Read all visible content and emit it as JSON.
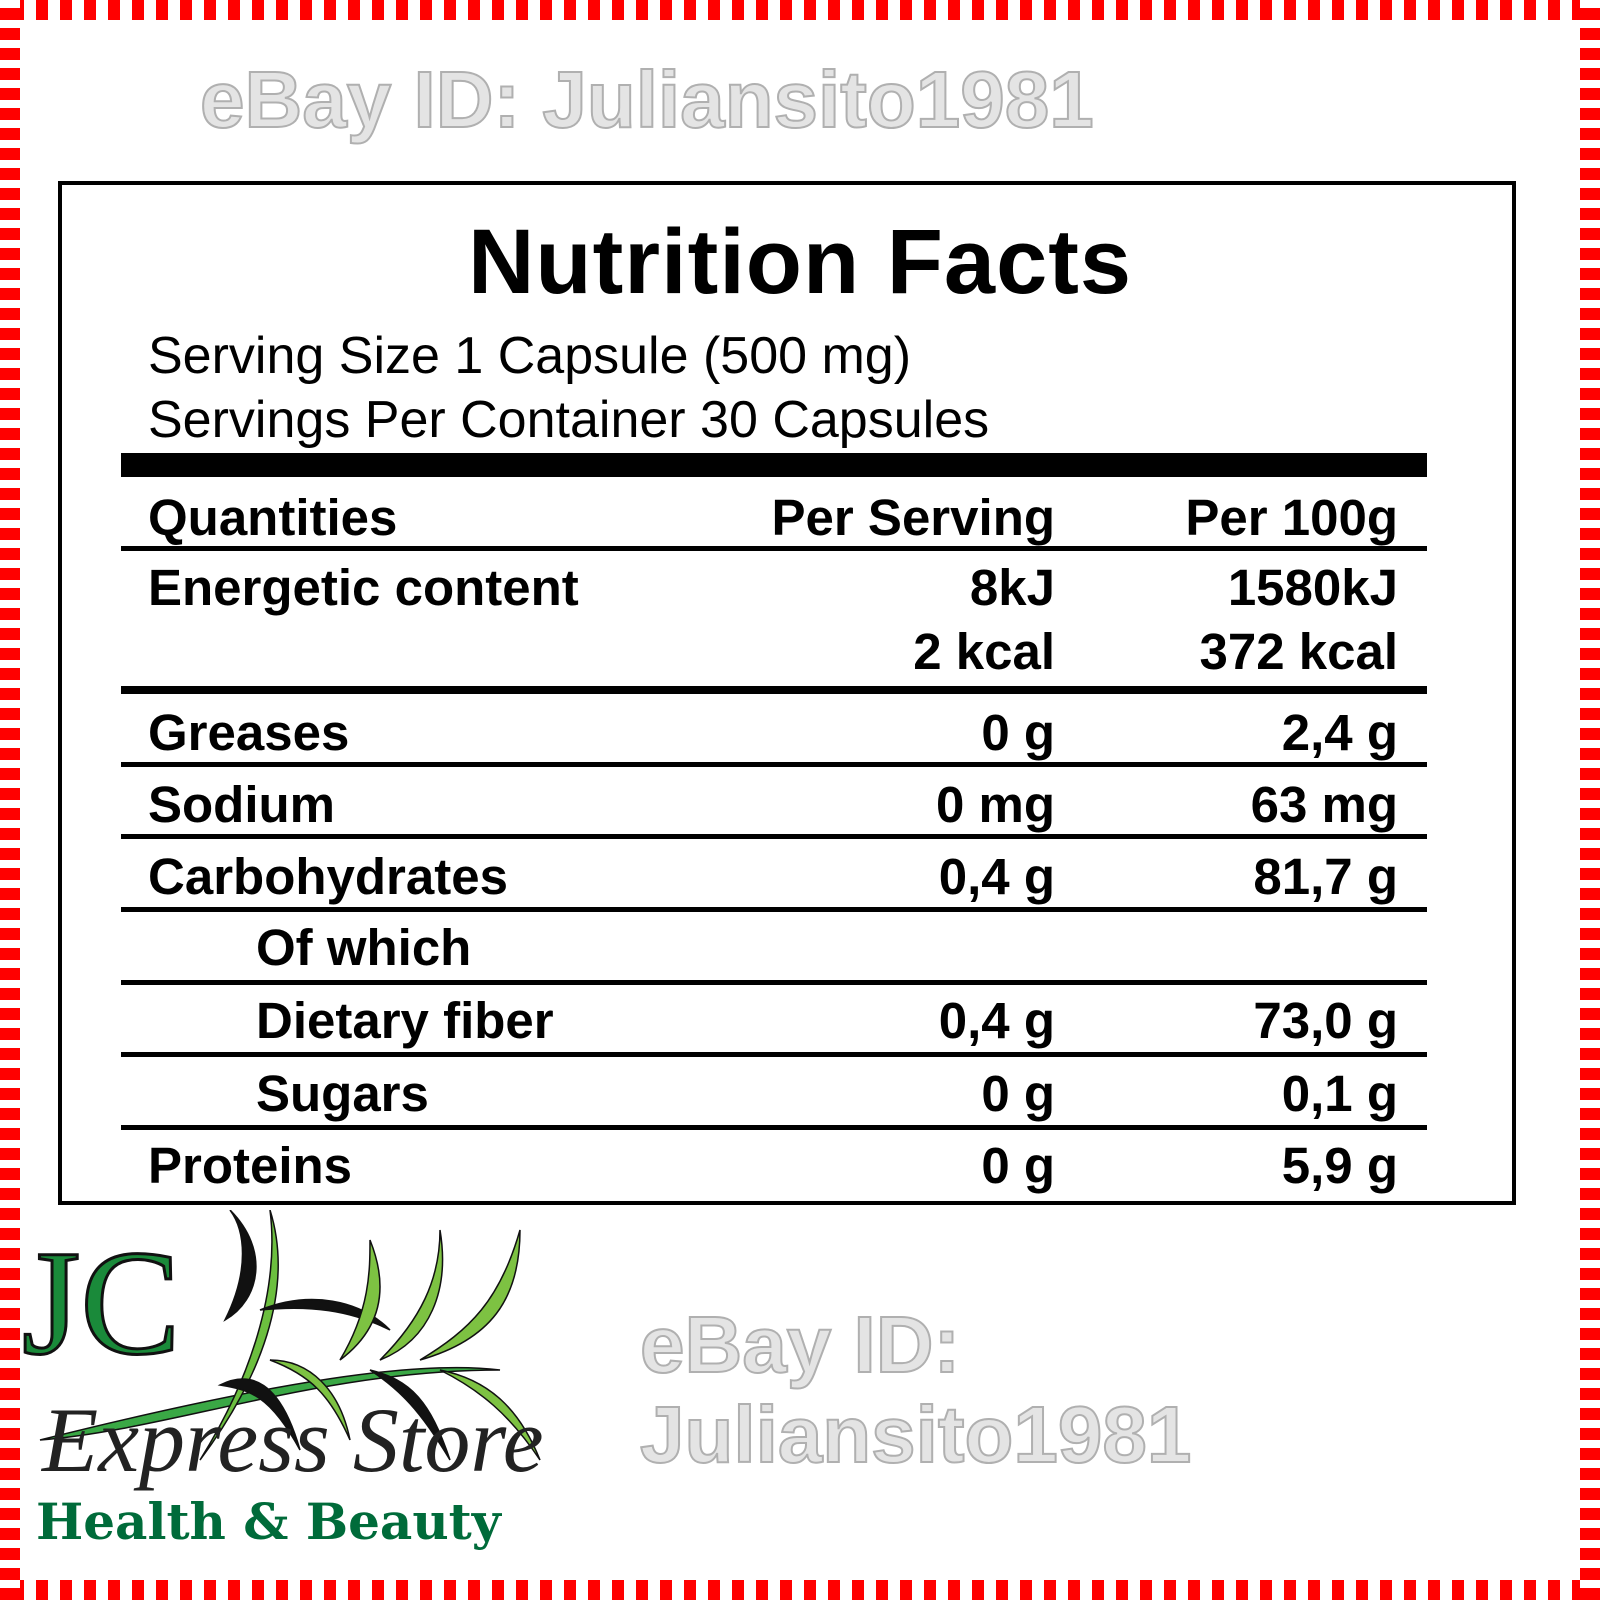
{
  "label": {
    "title": "Nutrition Facts",
    "serving_size": "Serving Size 1 Capsule (500 mg)",
    "servings_per_container": "Servings Per Container 30 Capsules",
    "headers": {
      "quantities": "Quantities",
      "per_serving": "Per Serving",
      "per_100g": "Per 100g"
    },
    "rows": [
      {
        "label": "Energetic content",
        "per_serving": "8kJ",
        "per_100g": "1580kJ"
      },
      {
        "label": "",
        "per_serving": "2 kcal",
        "per_100g": "372 kcal"
      },
      {
        "label": "Greases",
        "per_serving": "0 g",
        "per_100g": "2,4 g"
      },
      {
        "label": "Sodium",
        "per_serving": "0 mg",
        "per_100g": "63 mg"
      },
      {
        "label": "Carbohydrates",
        "per_serving": "0,4 g",
        "per_100g": "81,7 g"
      },
      {
        "label": "Of which",
        "per_serving": "",
        "per_100g": ""
      },
      {
        "label": "Dietary fiber",
        "per_serving": "0,4 g",
        "per_100g": "73,0 g"
      },
      {
        "label": "Sugars",
        "per_serving": "0 g",
        "per_100g": "0,1 g"
      },
      {
        "label": "Proteins",
        "per_serving": "0 g",
        "per_100g": "5,9 g"
      }
    ]
  },
  "watermark": "eBay ID: Juliansito1981",
  "logo": {
    "monogram": "JC",
    "name": "Express Store",
    "tagline": "Health & Beauty"
  },
  "colors": {
    "border": "#ff0000",
    "brand_green": "#006b3a",
    "leaf_green": "#7dc242"
  }
}
